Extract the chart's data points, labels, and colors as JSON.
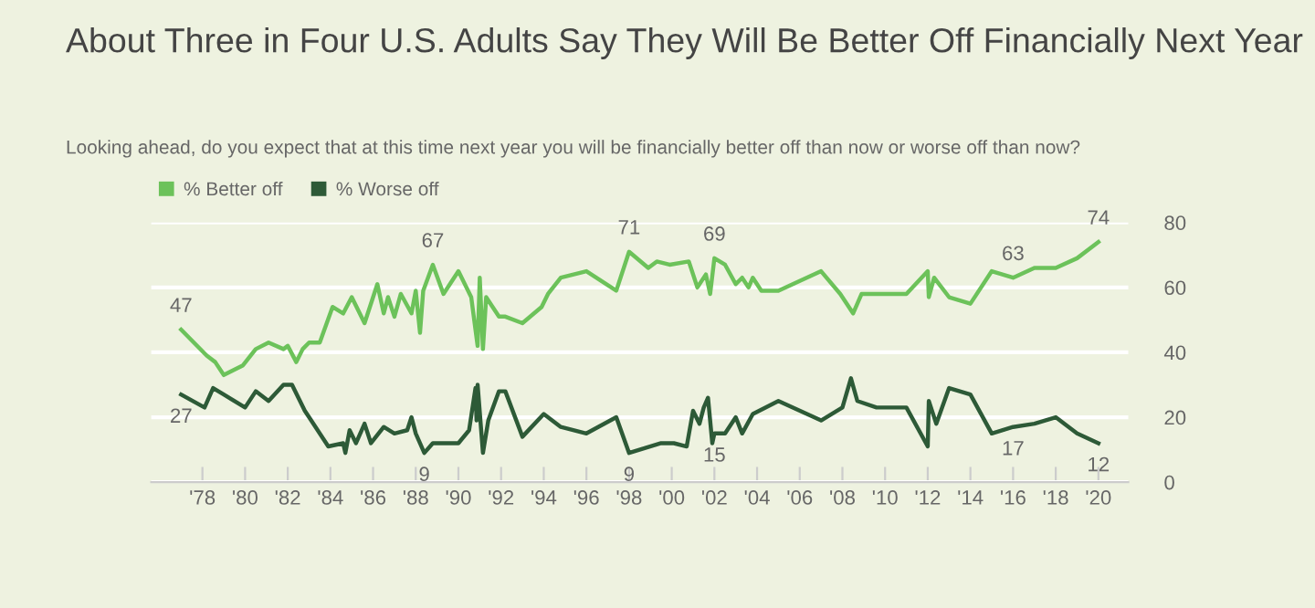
{
  "chart_data": {
    "type": "line",
    "title": "About Three in Four U.S. Adults Say They Will Be Better Off Financially Next Year",
    "subtitle": "Looking ahead, do you expect that at this time next year you will be financially better off than now or worse off than now?",
    "series": [
      {
        "name": "% Better off",
        "color": "#6cc25a",
        "x": [
          1977,
          1978.2,
          1978.6,
          1979,
          1979.9,
          1980.5,
          1981.1,
          1981.8,
          1982,
          1982.4,
          1982.7,
          1983,
          1983.5,
          1984.1,
          1984.6,
          1985,
          1985.6,
          1986.2,
          1986.5,
          1986.7,
          1987,
          1987.3,
          1987.8,
          1988,
          1988.2,
          1988.35,
          1988.8,
          1989.3,
          1990,
          1990.6,
          1990.9,
          1991,
          1991.15,
          1991.3,
          1991.9,
          1992.2,
          1993,
          1993.9,
          1994.2,
          1994.8,
          1996,
          1997.4,
          1998,
          1998.9,
          1999.3,
          1999.9,
          2000.8,
          2001.2,
          2001.6,
          2001.8,
          2002,
          2002.5,
          2003,
          2003.3,
          2003.6,
          2003.8,
          2004.2,
          2005,
          2007,
          2007.9,
          2008.5,
          2008.9,
          2011,
          2012,
          2012.05,
          2012.3,
          2013,
          2014,
          2015,
          2016,
          2017,
          2018,
          2019,
          2020
        ],
        "values": [
          47,
          39,
          37,
          33,
          36,
          41,
          43,
          41,
          42,
          37,
          41,
          43,
          43,
          54,
          52,
          57,
          49,
          61,
          52,
          57,
          51,
          58,
          52,
          59,
          46,
          59,
          67,
          58,
          65,
          57,
          42,
          63,
          41,
          57,
          51,
          51,
          49,
          54,
          58,
          63,
          65,
          59,
          71,
          66,
          68,
          67,
          68,
          60,
          64,
          58,
          69,
          67,
          61,
          63,
          60,
          63,
          59,
          59,
          65,
          58,
          52,
          58,
          58,
          65,
          57,
          63,
          57,
          55,
          65,
          63,
          66,
          66,
          69,
          74
        ],
        "value_labels": [
          "47",
          null,
          null,
          null,
          null,
          null,
          null,
          null,
          null,
          null,
          null,
          null,
          null,
          null,
          null,
          null,
          null,
          null,
          null,
          null,
          null,
          null,
          null,
          null,
          null,
          null,
          "67",
          null,
          null,
          null,
          null,
          null,
          null,
          null,
          null,
          null,
          null,
          null,
          null,
          null,
          null,
          null,
          "71",
          null,
          null,
          null,
          null,
          null,
          null,
          null,
          "69",
          null,
          null,
          null,
          null,
          null,
          null,
          null,
          null,
          null,
          null,
          null,
          null,
          null,
          null,
          null,
          null,
          null,
          null,
          "63",
          null,
          null,
          null,
          "74"
        ]
      },
      {
        "name": "% Worse off",
        "color": "#2d5a37",
        "x": [
          1977,
          1978.1,
          1978.5,
          1979,
          1980,
          1980.5,
          1981.1,
          1981.8,
          1982.2,
          1982.8,
          1983,
          1983.9,
          1984.6,
          1984.7,
          1984.9,
          1985.2,
          1985.6,
          1985.9,
          1986.5,
          1987,
          1987.6,
          1987.8,
          1988,
          1988.4,
          1988.8,
          1990,
          1990.5,
          1990.8,
          1990.85,
          1990.9,
          1991.15,
          1991.4,
          1991.9,
          1992.2,
          1993,
          1994,
          1994.8,
          1996,
          1997.4,
          1998,
          1999.5,
          2000.1,
          2000.7,
          2001,
          2001.3,
          2001.5,
          2001.7,
          2001.9,
          2002,
          2002.5,
          2003,
          2003.3,
          2003.8,
          2005,
          2007,
          2008,
          2008.4,
          2008.7,
          2009.6,
          2011,
          2012,
          2012.05,
          2012.4,
          2013,
          2014,
          2015,
          2016,
          2017,
          2018,
          2019,
          2020
        ],
        "values": [
          27,
          23,
          29,
          27,
          23,
          28,
          25,
          30,
          30,
          22,
          20,
          11,
          12,
          9,
          16,
          12,
          18,
          12,
          17,
          15,
          16,
          20,
          15,
          9,
          12,
          12,
          16,
          29,
          19,
          30,
          9,
          19,
          28,
          28,
          14,
          21,
          17,
          15,
          20,
          9,
          12,
          12,
          11,
          22,
          18,
          23,
          26,
          12,
          15,
          15,
          20,
          15,
          21,
          25,
          19,
          23,
          32,
          25,
          23,
          23,
          11,
          25,
          18,
          29,
          27,
          15,
          17,
          18,
          20,
          15,
          12
        ],
        "value_labels": [
          "27",
          null,
          null,
          null,
          null,
          null,
          null,
          null,
          null,
          null,
          null,
          null,
          null,
          null,
          null,
          null,
          null,
          null,
          null,
          null,
          null,
          null,
          null,
          "9",
          null,
          null,
          null,
          null,
          null,
          null,
          null,
          null,
          null,
          null,
          null,
          null,
          null,
          null,
          null,
          "9",
          null,
          null,
          null,
          null,
          null,
          null,
          null,
          null,
          "15",
          null,
          null,
          null,
          null,
          null,
          null,
          null,
          null,
          null,
          null,
          null,
          null,
          null,
          null,
          null,
          null,
          null,
          "17",
          null,
          null,
          null,
          "12"
        ]
      }
    ],
    "xlim": [
      1975.6,
      2021.4
    ],
    "xticks": [
      {
        "value": 1978,
        "label": "'78"
      },
      {
        "value": 1980,
        "label": "'80"
      },
      {
        "value": 1982,
        "label": "'82"
      },
      {
        "value": 1984,
        "label": "'84"
      },
      {
        "value": 1986,
        "label": "'86"
      },
      {
        "value": 1988,
        "label": "'88"
      },
      {
        "value": 1990,
        "label": "'90"
      },
      {
        "value": 1992,
        "label": "'92"
      },
      {
        "value": 1994,
        "label": "'94"
      },
      {
        "value": 1996,
        "label": "'96"
      },
      {
        "value": 1998,
        "label": "'98"
      },
      {
        "value": 2000,
        "label": "'00"
      },
      {
        "value": 2002,
        "label": "'02"
      },
      {
        "value": 2004,
        "label": "'04"
      },
      {
        "value": 2006,
        "label": "'06"
      },
      {
        "value": 2008,
        "label": "'08"
      },
      {
        "value": 2010,
        "label": "'10"
      },
      {
        "value": 2012,
        "label": "'12"
      },
      {
        "value": 2014,
        "label": "'14"
      },
      {
        "value": 2016,
        "label": "'16"
      },
      {
        "value": 2018,
        "label": "'18"
      },
      {
        "value": 2020,
        "label": "'20"
      }
    ],
    "ylim": [
      0,
      80
    ],
    "yticks": [
      0,
      20,
      40,
      60,
      80
    ],
    "grid": "y",
    "legend": "top left",
    "marker": "none",
    "line_style": "solid"
  }
}
